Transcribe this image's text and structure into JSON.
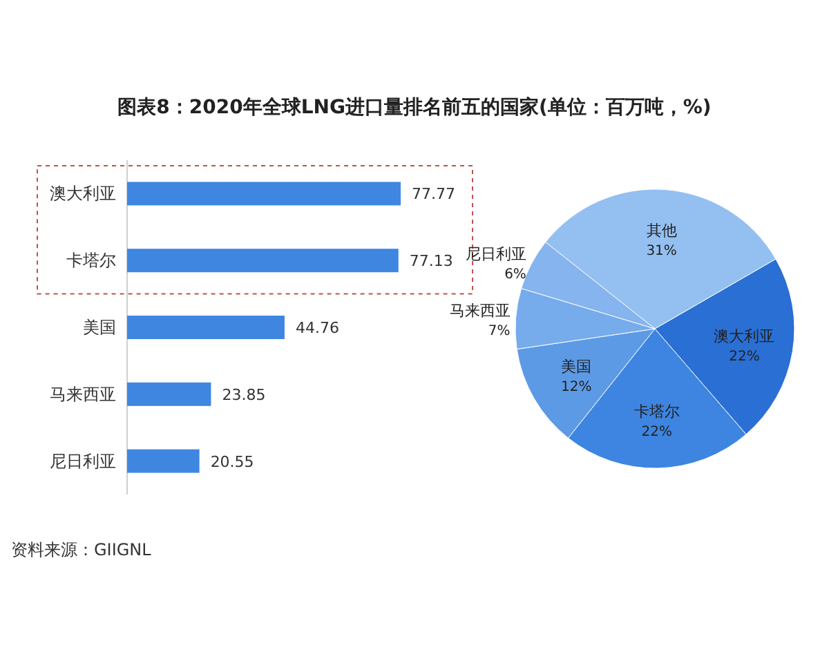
{
  "chart_data": [
    {
      "type": "bar",
      "orientation": "horizontal",
      "title": "图表8：2020年全球LNG进口量排名前五的国家(单位：百万吨，%)",
      "categories": [
        "澳大利亚",
        "卡塔尔",
        "美国",
        "马来西亚",
        "尼日利亚"
      ],
      "values": [
        77.77,
        77.13,
        44.76,
        23.85,
        20.55
      ],
      "color": "#3f86e0",
      "data_labels": true,
      "annotations": [
        "资料来源：GIIGNL"
      ]
    },
    {
      "type": "pie",
      "categories": [
        "澳大利亚",
        "卡塔尔",
        "美国",
        "马来西亚",
        "尼日利亚",
        "其他"
      ],
      "values": [
        22,
        22,
        12,
        7,
        6,
        31
      ],
      "colors": [
        "#2a6fd3",
        "#3d85e0",
        "#5d9ae6",
        "#76abec",
        "#85b4ee",
        "#94bff1"
      ],
      "value_labels": [
        "22%",
        "22%",
        "12%",
        "7%",
        "6%",
        "31%"
      ]
    }
  ]
}
